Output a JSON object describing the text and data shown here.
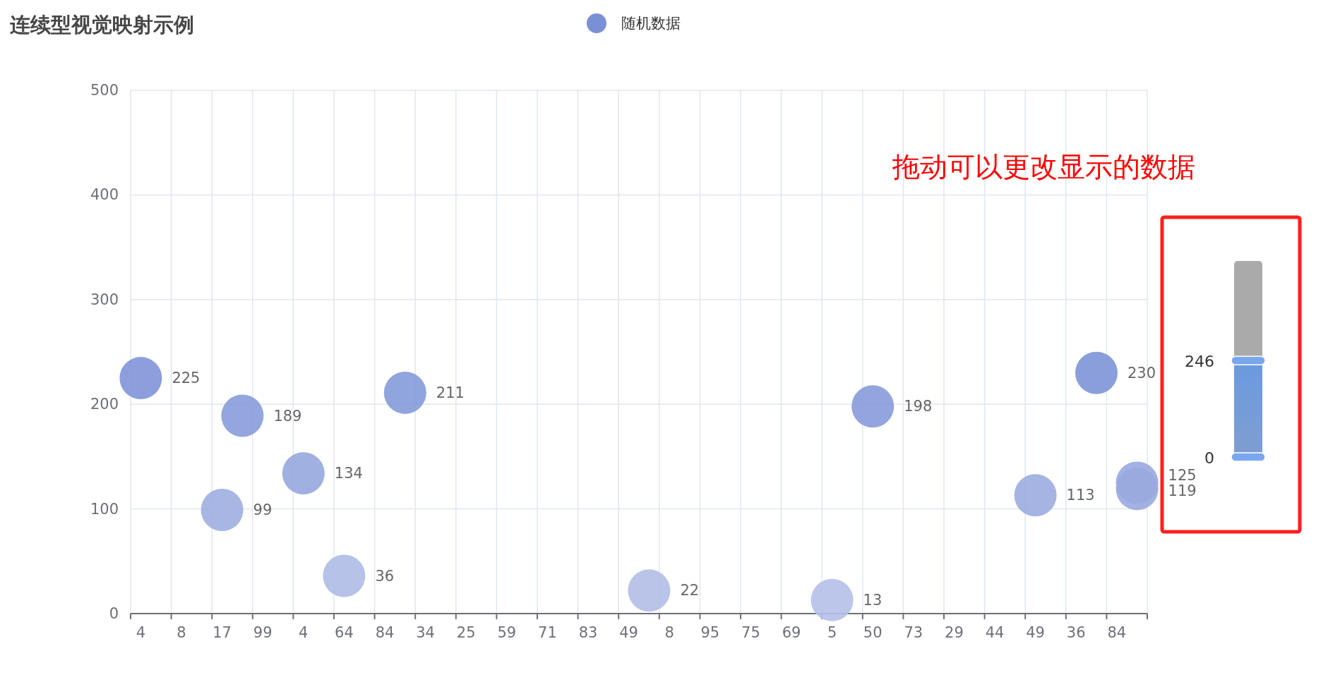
{
  "chart_data": {
    "type": "scatter",
    "title": "连续型视觉映射示例",
    "categories": [
      "4",
      null,
      "8",
      null,
      "17",
      null,
      "99",
      null,
      "4",
      null,
      "64",
      null,
      "84",
      null,
      "34",
      null,
      "25",
      null,
      "59",
      null,
      "71",
      null,
      "83",
      null,
      "49",
      null,
      "8",
      null,
      "95",
      null,
      "75",
      null,
      "69",
      null,
      "5",
      null,
      "50",
      null,
      "73",
      null,
      "29",
      null,
      "44",
      null,
      "49",
      null,
      "36",
      null,
      "84",
      null
    ],
    "series": [
      {
        "name": "随机数据",
        "color": "#7a90d6",
        "values": [
          225,
          null,
          null,
          null,
          99,
          189,
          null,
          null,
          134,
          null,
          36,
          null,
          null,
          211,
          null,
          null,
          null,
          null,
          null,
          null,
          null,
          null,
          null,
          null,
          null,
          22,
          null,
          null,
          null,
          null,
          null,
          null,
          null,
          null,
          13,
          null,
          198,
          null,
          null,
          null,
          null,
          null,
          null,
          null,
          113,
          null,
          null,
          230,
          null,
          125
        ],
        "colors": [
          "#7f94d8",
          null,
          null,
          null,
          "#9eaee1",
          "#889cda",
          null,
          null,
          "#95a7de",
          null,
          "#aebbe6",
          null,
          null,
          "#849ad9",
          null,
          null,
          null,
          null,
          null,
          null,
          null,
          null,
          null,
          null,
          null,
          "#b2bee7",
          null,
          null,
          null,
          null,
          null,
          null,
          null,
          null,
          "#b4c0e8",
          null,
          "#869bda",
          null,
          null,
          null,
          null,
          null,
          null,
          null,
          "#9bacdf",
          null,
          null,
          "#7d93d7",
          null,
          "#97a9df"
        ]
      },
      {
        "color": "#99aadf",
        "values": [
          null,
          null,
          null,
          null,
          null,
          null,
          null,
          null,
          null,
          null,
          null,
          null,
          null,
          null,
          null,
          null,
          null,
          null,
          null,
          null,
          null,
          null,
          null,
          null,
          null,
          null,
          null,
          null,
          null,
          null,
          null,
          null,
          null,
          null,
          null,
          null,
          null,
          null,
          null,
          null,
          null,
          null,
          null,
          null,
          null,
          null,
          null,
          null,
          null,
          119
        ]
      }
    ],
    "ylim": [
      0,
      500
    ],
    "yticks": [
      0,
      100,
      200,
      300,
      400,
      500
    ],
    "clim": [
      0,
      500
    ],
    "cticks": [
      0,
      246
    ],
    "grid": true,
    "legend": "top",
    "marker": "circle",
    "data_labels": true,
    "annotations": [
      "拖动可以更改显示的数据"
    ]
  }
}
